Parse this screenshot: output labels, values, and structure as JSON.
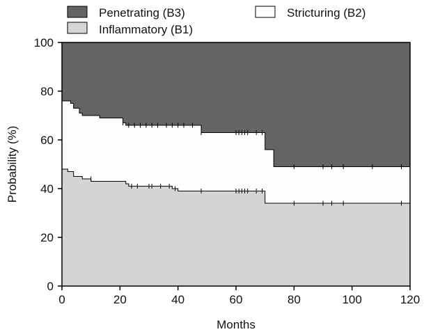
{
  "chart_data": {
    "type": "area",
    "xlabel": "Months",
    "ylabel": "Probability (%)",
    "xlim": [
      0,
      120
    ],
    "ylim": [
      0,
      100
    ],
    "xticks": [
      "0",
      "20",
      "40",
      "60",
      "80",
      "100",
      "120"
    ],
    "yticks": [
      "0",
      "20",
      "40",
      "60",
      "80",
      "100"
    ],
    "grid": false,
    "legend_position": "top",
    "series": [
      {
        "name": "Penetrating (B3)",
        "color": "#646464",
        "region": "above upper boundary",
        "boundary_steps": [
          [
            0,
            76
          ],
          [
            3,
            75
          ],
          [
            4,
            73
          ],
          [
            6,
            71
          ],
          [
            7,
            70
          ],
          [
            13,
            69
          ],
          [
            21,
            67
          ],
          [
            22,
            66
          ],
          [
            48,
            63
          ],
          [
            70,
            56
          ],
          [
            73,
            49
          ],
          [
            120,
            49
          ]
        ],
        "censor_marks": [
          [
            21,
            67
          ],
          [
            23,
            66
          ],
          [
            25,
            66
          ],
          [
            27,
            66
          ],
          [
            29,
            66
          ],
          [
            31,
            66
          ],
          [
            33,
            66
          ],
          [
            36,
            66
          ],
          [
            38,
            66
          ],
          [
            40,
            66
          ],
          [
            42,
            66
          ],
          [
            45,
            66
          ],
          [
            48,
            63
          ],
          [
            60,
            63
          ],
          [
            61,
            63
          ],
          [
            62,
            63
          ],
          [
            63,
            63
          ],
          [
            64,
            63
          ],
          [
            67,
            63
          ],
          [
            69,
            63
          ],
          [
            80,
            49
          ],
          [
            90,
            49
          ],
          [
            93,
            49
          ],
          [
            97,
            49
          ],
          [
            107,
            49
          ],
          [
            117,
            49
          ]
        ]
      },
      {
        "name": "Stricturing (B2)",
        "color": "#fdfdfd",
        "region": "between boundaries"
      },
      {
        "name": "Inflammatory (B1)",
        "color": "#d4d4d4",
        "region": "below lower boundary",
        "boundary_steps": [
          [
            0,
            48
          ],
          [
            2,
            47
          ],
          [
            4,
            45
          ],
          [
            7,
            44
          ],
          [
            10,
            43
          ],
          [
            22,
            42
          ],
          [
            23,
            41
          ],
          [
            38,
            40
          ],
          [
            40,
            39
          ],
          [
            70,
            34
          ],
          [
            120,
            34
          ]
        ],
        "censor_marks": [
          [
            10,
            44
          ],
          [
            24,
            41
          ],
          [
            26,
            41
          ],
          [
            30,
            41
          ],
          [
            31,
            41
          ],
          [
            34,
            41
          ],
          [
            37,
            41
          ],
          [
            39,
            40
          ],
          [
            48,
            39
          ],
          [
            60,
            39
          ],
          [
            61,
            39
          ],
          [
            62,
            39
          ],
          [
            63,
            39
          ],
          [
            64,
            39
          ],
          [
            67,
            39
          ],
          [
            69,
            39
          ],
          [
            80,
            34
          ],
          [
            90,
            34
          ],
          [
            93,
            34
          ],
          [
            97,
            34
          ],
          [
            117,
            34
          ]
        ]
      }
    ]
  }
}
